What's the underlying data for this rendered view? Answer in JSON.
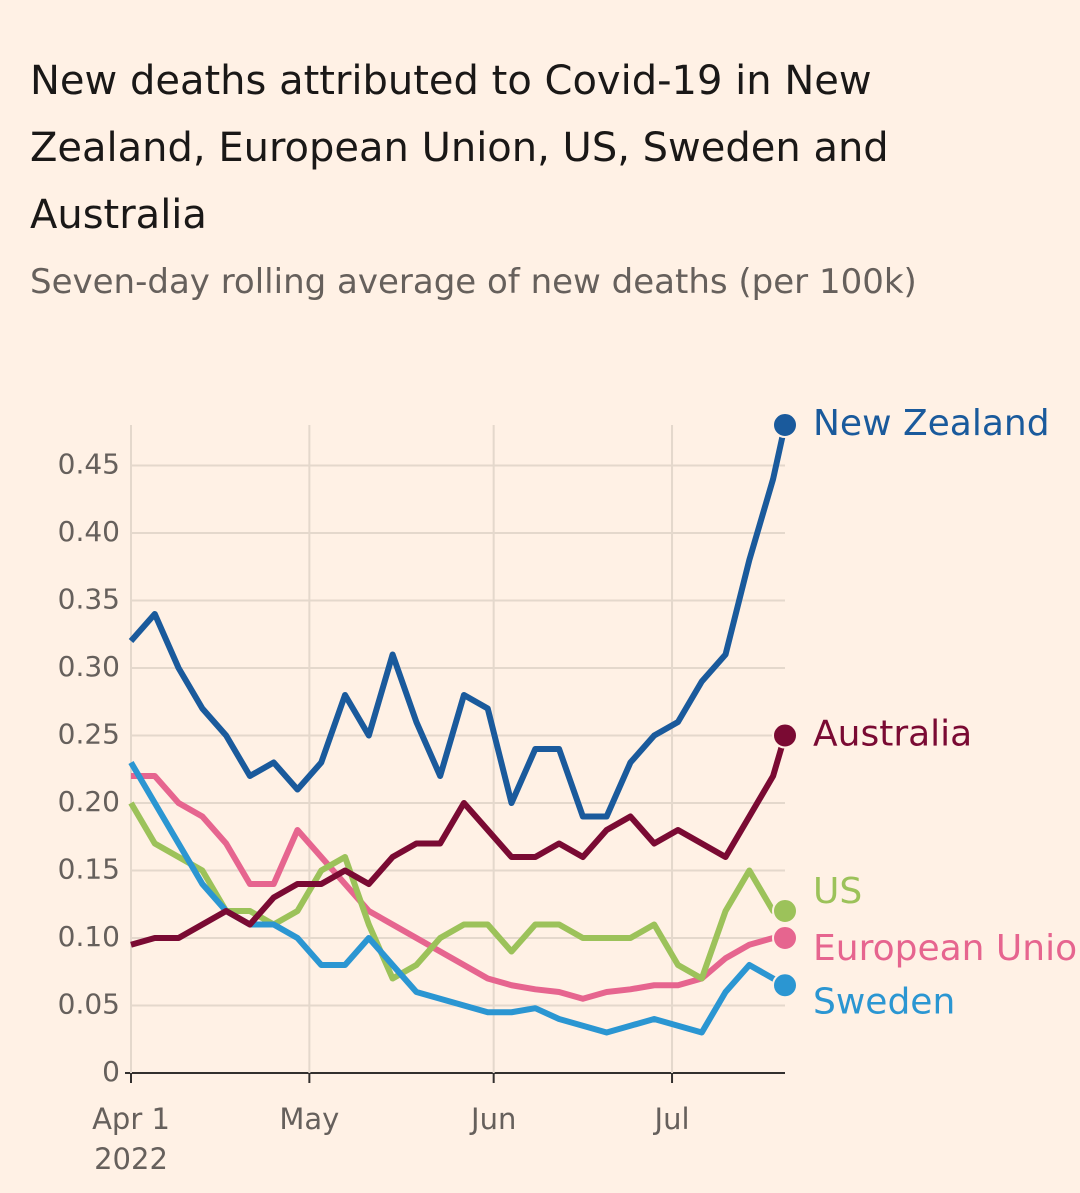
{
  "chart_data": {
    "type": "line",
    "title": "New deaths attributed to Covid-19 in New Zealand, European Union, US, Sweden and Australia",
    "subtitle": "Seven-day rolling average of new deaths (per 100k)",
    "x": [
      0,
      4,
      8,
      12,
      16,
      20,
      24,
      28,
      32,
      36,
      40,
      44,
      48,
      52,
      56,
      60,
      64,
      68,
      72,
      76,
      80,
      84,
      88,
      92,
      96,
      100,
      104,
      108,
      110
    ],
    "xlim": [
      0,
      110
    ],
    "xticks": [
      {
        "value": 0,
        "label": "Apr 1\n2022"
      },
      {
        "value": 30,
        "label": "May"
      },
      {
        "value": 61,
        "label": "Jun"
      },
      {
        "value": 91,
        "label": "Jul"
      }
    ],
    "ylim": [
      0,
      0.48
    ],
    "yticks": [
      0,
      0.05,
      {
        "value": 0.1,
        "label": "0.10"
      },
      0.15,
      {
        "value": 0.2,
        "label": "0.20"
      },
      0.25,
      {
        "value": 0.3,
        "label": "0.30"
      },
      0.35,
      {
        "value": 0.4,
        "label": "0.40"
      },
      0.45
    ],
    "grid": true,
    "series": [
      {
        "name": "New Zealand",
        "color": "#1a5a9c",
        "values": [
          0.32,
          0.34,
          0.3,
          0.27,
          0.25,
          0.22,
          0.23,
          0.21,
          0.23,
          0.28,
          0.25,
          0.31,
          0.26,
          0.22,
          0.28,
          0.27,
          0.2,
          0.24,
          0.24,
          0.19,
          0.19,
          0.23,
          0.25,
          0.26,
          0.29,
          0.31,
          0.38,
          0.44,
          0.48
        ]
      },
      {
        "name": "Australia",
        "color": "#7a0a33",
        "values": [
          0.095,
          0.1,
          0.1,
          0.11,
          0.12,
          0.11,
          0.13,
          0.14,
          0.14,
          0.15,
          0.14,
          0.16,
          0.17,
          0.17,
          0.2,
          0.18,
          0.16,
          0.16,
          0.17,
          0.16,
          0.18,
          0.19,
          0.17,
          0.18,
          0.17,
          0.16,
          0.19,
          0.22,
          0.25
        ]
      },
      {
        "name": "US",
        "color": "#9cc25a",
        "values": [
          0.2,
          0.17,
          0.16,
          0.15,
          0.12,
          0.12,
          0.11,
          0.12,
          0.15,
          0.16,
          0.11,
          0.07,
          0.08,
          0.1,
          0.11,
          0.11,
          0.09,
          0.11,
          0.11,
          0.1,
          0.1,
          0.1,
          0.11,
          0.08,
          0.07,
          0.12,
          0.15,
          0.12,
          0.12
        ]
      },
      {
        "name": "European Union",
        "color": "#e6658f",
        "values": [
          0.22,
          0.22,
          0.2,
          0.19,
          0.17,
          0.14,
          0.14,
          0.18,
          0.16,
          0.14,
          0.12,
          0.11,
          0.1,
          0.09,
          0.08,
          0.07,
          0.065,
          0.062,
          0.06,
          0.055,
          0.06,
          0.062,
          0.065,
          0.065,
          0.07,
          0.085,
          0.095,
          0.1,
          0.1
        ]
      },
      {
        "name": "Sweden",
        "color": "#2b96d2",
        "values": [
          0.23,
          0.2,
          0.17,
          0.14,
          0.12,
          0.11,
          0.11,
          0.1,
          0.08,
          0.08,
          0.1,
          0.08,
          0.06,
          0.055,
          0.05,
          0.045,
          0.045,
          0.048,
          0.04,
          0.035,
          0.03,
          0.035,
          0.04,
          0.035,
          0.03,
          0.06,
          0.08,
          0.07,
          0.065
        ]
      }
    ]
  }
}
